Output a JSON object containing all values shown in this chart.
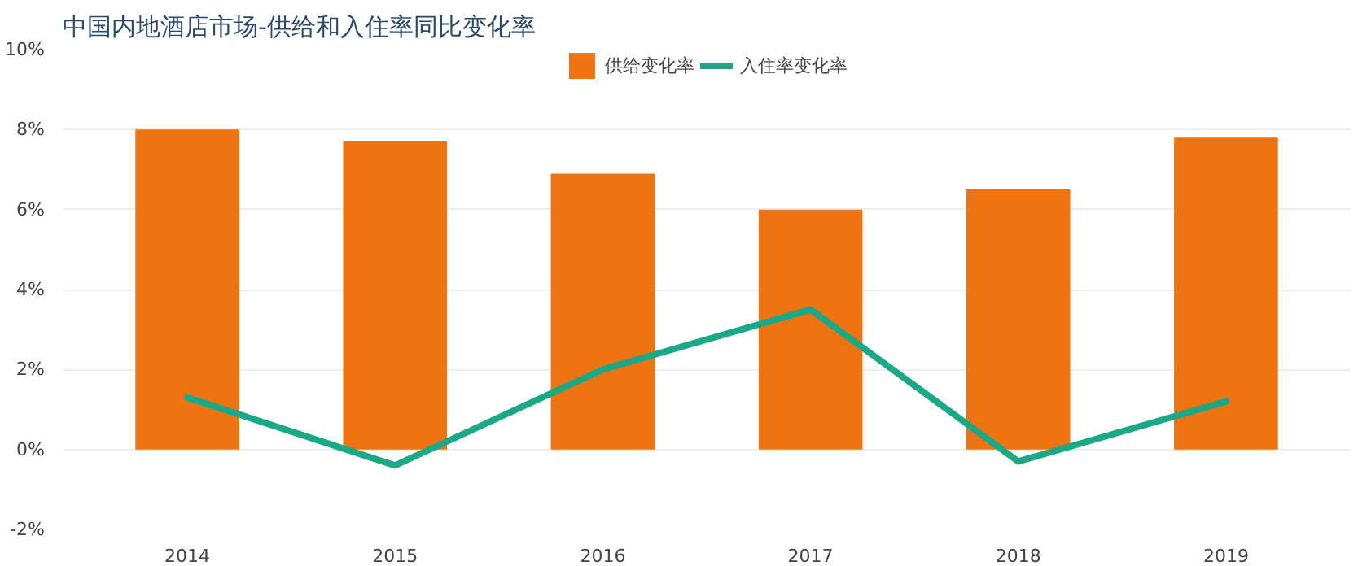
{
  "chart_data": {
    "type": "bar",
    "title": "中国内地酒店市场-供给和入住率同比变化率",
    "categories": [
      "2014",
      "2015",
      "2016",
      "2017",
      "2018",
      "2019"
    ],
    "series": [
      {
        "name": "供给变化率",
        "color": "#ee7413",
        "values": [
          8.0,
          7.7,
          6.9,
          6.0,
          6.5,
          7.8
        ]
      },
      {
        "name": "入住率变化率",
        "type": "line",
        "color": "#1aa887",
        "values": [
          1.3,
          -0.4,
          2.0,
          3.5,
          -0.3,
          1.2
        ]
      }
    ],
    "ylim": [
      -2,
      10
    ],
    "yticks": [
      {
        "value": -2,
        "label": "-2%"
      },
      {
        "value": 0,
        "label": "0%"
      },
      {
        "value": 2,
        "label": "2%"
      },
      {
        "value": 4,
        "label": "4%"
      },
      {
        "value": 6,
        "label": "6%"
      },
      {
        "value": 8,
        "label": "8%"
      },
      {
        "value": 10,
        "label": "10%"
      }
    ],
    "grid": "y",
    "legend": "top",
    "marker": "none",
    "line_style": "solid"
  }
}
